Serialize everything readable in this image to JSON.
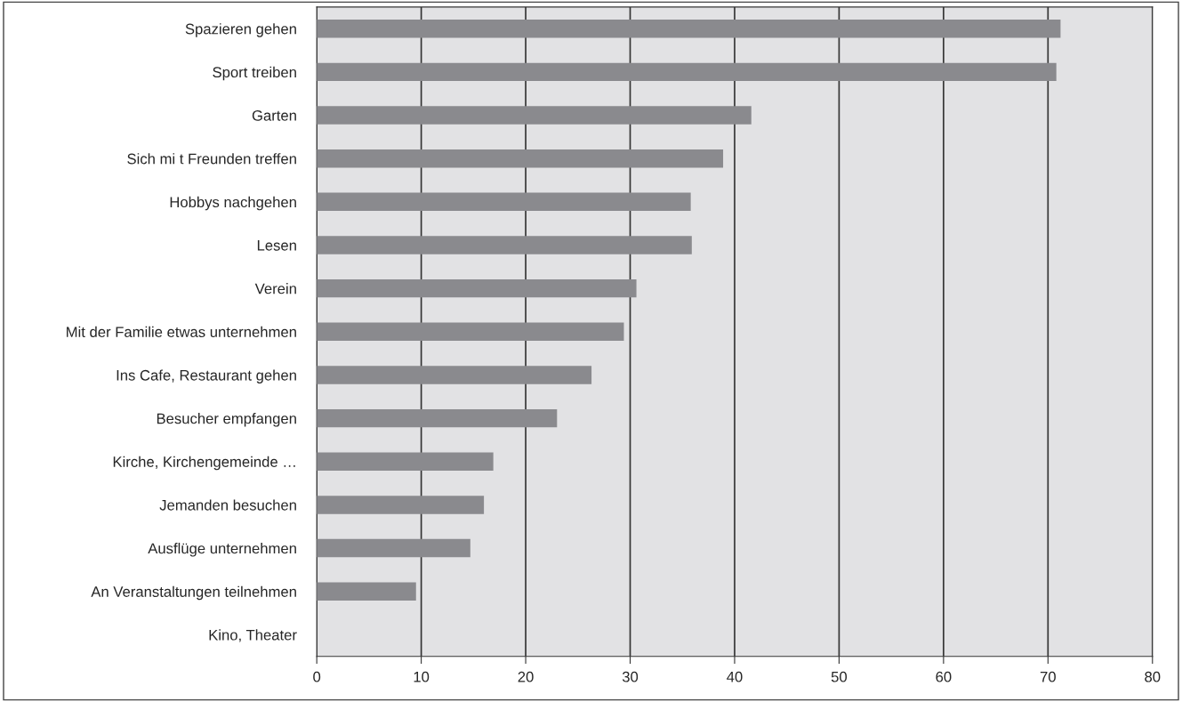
{
  "chart_data": {
    "type": "bar",
    "orientation": "horizontal",
    "categories": [
      "Spazieren gehen",
      "Sport treiben",
      "Garten",
      "Sich mi t Freunden treffen",
      "Hobbys nachgehen",
      "Lesen",
      "Verein",
      "Mit der Familie etwas unternehmen",
      "Ins Cafe, Restaurant gehen",
      "Besucher empfangen",
      "Kirche, Kirchengemeinde …",
      "Jemanden besuchen",
      "Ausflüge unternehmen",
      "An Veranstaltungen teilnehmen",
      "Kino, Theater"
    ],
    "values": [
      71.2,
      70.8,
      41.6,
      38.9,
      35.8,
      35.9,
      30.6,
      29.4,
      26.3,
      23.0,
      16.9,
      16.0,
      14.7,
      9.5,
      0
    ],
    "color": "#8a8a8e",
    "xlim": [
      0,
      80
    ],
    "xticks": [
      0,
      10,
      20,
      30,
      40,
      50,
      60,
      70,
      80
    ],
    "grid": "x"
  }
}
